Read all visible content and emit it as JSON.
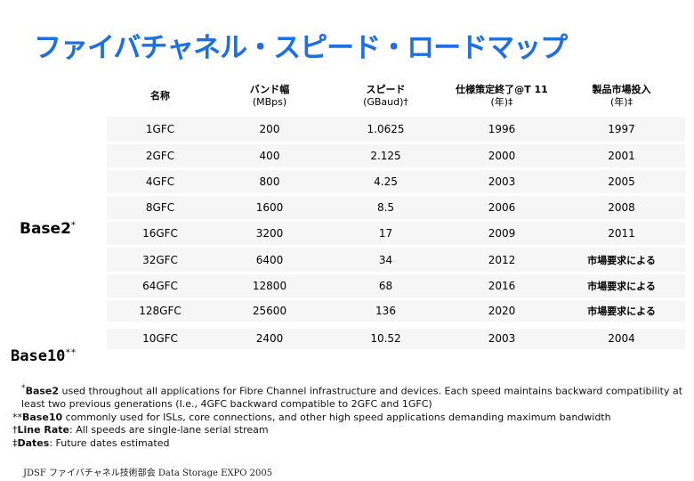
{
  "title": "ファイバチャネル・スピード・ロードマップ",
  "table": {
    "headers": [
      {
        "main": "名称",
        "sub": ""
      },
      {
        "main": "バンド幅",
        "sub": "(MBps)"
      },
      {
        "main": "スピード",
        "sub": "(GBaud)†"
      },
      {
        "main": "仕様策定終了@T 11",
        "sub": "(年)‡"
      },
      {
        "main": "製品市場投入",
        "sub": "(年)‡"
      }
    ],
    "rows": [
      [
        "1GFC",
        "200",
        "1.0625",
        "1996",
        "1997"
      ],
      [
        "2GFC",
        "400",
        "2.125",
        "2000",
        "2001"
      ],
      [
        "4GFC",
        "800",
        "4.25",
        "2003",
        "2005"
      ],
      [
        "8GFC",
        "1600",
        "8.5",
        "2006",
        "2008"
      ],
      [
        "16GFC",
        "3200",
        "17",
        "2009",
        "2011"
      ],
      [
        "32GFC",
        "6400",
        "34",
        "2012",
        "市場要求による"
      ],
      [
        "64GFC",
        "12800",
        "68",
        "2016",
        "市場要求による"
      ],
      [
        "128GFC",
        "25600",
        "136",
        "2020",
        "市場要求による"
      ],
      [
        "10GFC",
        "2400",
        "10.52",
        "2003",
        "2004"
      ]
    ]
  },
  "groups": {
    "base2": {
      "label": "Base2",
      "mark": "*"
    },
    "base10": {
      "label": "Base10",
      "mark": "**"
    }
  },
  "notes": {
    "n1_mark": "*",
    "n1_term": "Base2",
    "n1_text": " used throughout all applications for Fibre Channel infrastructure and devices.  Each speed maintains backward compatibility at",
    "n1_cont": "least two previous generations (I.e., 4GFC backward compatible to 2GFC and 1GFC)",
    "n2_mark": "**",
    "n2_term": "Base10",
    "n2_text": " commonly used for ISLs, core connections, and other high speed applications demanding maximum bandwidth",
    "n3_mark": "†",
    "n3_term": "Line Rate",
    "n3_text": ": All speeds are single-lane serial stream",
    "n4_mark": "‡",
    "n4_term": "Dates",
    "n4_text": ": Future dates estimated"
  },
  "footer": "JDSF ファイバチャネル技術部会 Data Storage EXPO 2005",
  "colors": {
    "title": "#1e6fe0",
    "row_bg": "#f6f6f6"
  }
}
